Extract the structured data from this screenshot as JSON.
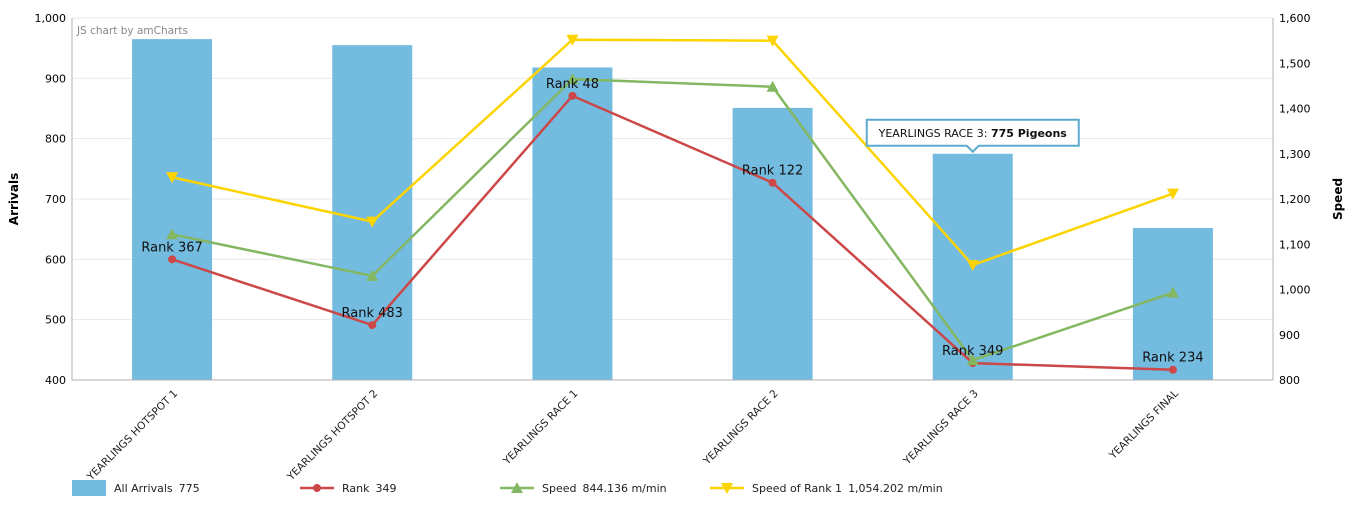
{
  "chart_data": {
    "type": "bar",
    "credit": "JS chart by amCharts",
    "categories": [
      "YEARLINGS HOTSPOT 1",
      "YEARLINGS HOTSPOT 2",
      "YEARLINGS RACE 1",
      "YEARLINGS RACE 2",
      "YEARLINGS RACE 3",
      "YEARLINGS FINAL"
    ],
    "ylabel": "Arrivals",
    "ylabel_right": "Speed",
    "ylim": [
      400,
      1000
    ],
    "yticks": [
      "400",
      "500",
      "600",
      "700",
      "800",
      "900",
      "1,000"
    ],
    "ylim_right": [
      800,
      1600
    ],
    "yticks_right": [
      "800",
      "900",
      "1,000",
      "1,100",
      "1,200",
      "1,300",
      "1,400",
      "1,500",
      "1,600"
    ],
    "grid": true,
    "legend_position": "bottom",
    "series": [
      {
        "name": "All Arrivals",
        "type": "bar",
        "axis": "left",
        "color": "#74bbe0",
        "values": [
          965,
          955,
          918,
          851,
          775,
          652
        ]
      },
      {
        "name": "Rank",
        "type": "line",
        "axis": "left",
        "color": "#cc4747",
        "marker": "circle",
        "values": [
          600,
          491,
          871,
          727,
          428,
          417
        ],
        "labels": [
          "Rank 367",
          "Rank 483",
          "Rank 48",
          "Rank 122",
          "Rank 349",
          "Rank 234"
        ]
      },
      {
        "name": "Speed",
        "type": "line",
        "axis": "right",
        "color": "#84b761",
        "marker": "triangle-up",
        "values": [
          1122,
          1030,
          1465,
          1448,
          844,
          993
        ]
      },
      {
        "name": "Speed of Rank 1",
        "type": "line",
        "axis": "right",
        "color": "#fdd400",
        "marker": "triangle-down",
        "values": [
          1248,
          1150,
          1552,
          1550,
          1054,
          1212
        ]
      }
    ],
    "legend": [
      {
        "label": "All Arrivals",
        "value": "775"
      },
      {
        "label": "Rank",
        "value": "349"
      },
      {
        "label": "Speed",
        "value": "844.136 m/min"
      },
      {
        "label": "Speed of Rank 1",
        "value": "1,054.202 m/min"
      }
    ],
    "tooltip": {
      "category": "YEARLINGS RACE 3",
      "label": "YEARLINGS RACE 3:",
      "value": "775 Pigeons"
    }
  }
}
